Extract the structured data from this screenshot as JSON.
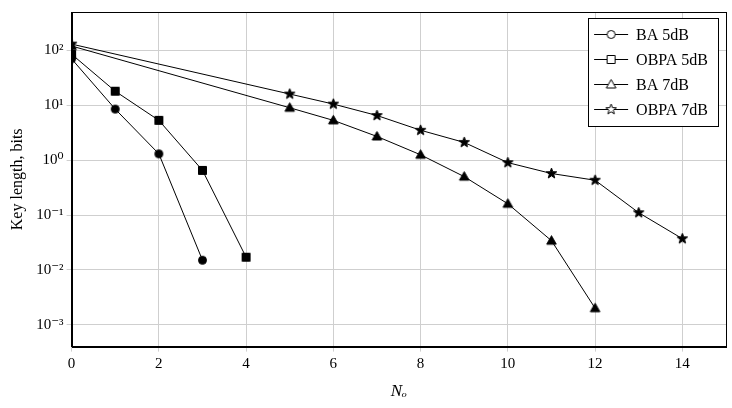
{
  "chart_data": {
    "type": "line",
    "x_label": "Nₒ",
    "y_label": "Key length, bits",
    "xlim": [
      0,
      15
    ],
    "xticks": [
      0,
      2,
      4,
      6,
      8,
      10,
      12,
      14
    ],
    "ylim": [
      0.0004,
      500
    ],
    "yticks": [
      {
        "value": 0.001,
        "label": "10⁻³"
      },
      {
        "value": 0.01,
        "label": "10⁻²"
      },
      {
        "value": 0.1,
        "label": "10⁻¹"
      },
      {
        "value": 1,
        "label": "10⁰"
      },
      {
        "value": 10,
        "label": "10¹"
      },
      {
        "value": 100,
        "label": "10²"
      }
    ],
    "log": "y",
    "grid": true,
    "legend": "upper right",
    "series": [
      {
        "name": "BA 5dB",
        "color": "#000000",
        "marker": "circle",
        "x": [
          0,
          1,
          2,
          3
        ],
        "values": [
          70,
          8.5,
          1.3,
          0.015
        ]
      },
      {
        "name": "OBPA 5dB",
        "color": "#000000",
        "marker": "square",
        "x": [
          0,
          1,
          2,
          3,
          4
        ],
        "values": [
          85,
          18,
          5.3,
          0.65,
          0.017
        ]
      },
      {
        "name": "BA 7dB",
        "color": "#000000",
        "marker": "triangle",
        "x": [
          0,
          5,
          6,
          7,
          8,
          9,
          10,
          11,
          12
        ],
        "values": [
          120,
          9,
          5.3,
          2.7,
          1.25,
          0.5,
          0.16,
          0.034,
          0.002
        ]
      },
      {
        "name": "OBPA 7dB",
        "color": "#000000",
        "marker": "star",
        "x": [
          0,
          5,
          6,
          7,
          8,
          9,
          10,
          11,
          12,
          13,
          14
        ],
        "values": [
          130,
          16,
          10.5,
          6.5,
          3.5,
          2.1,
          0.9,
          0.57,
          0.43,
          0.11,
          0.037
        ]
      }
    ]
  }
}
